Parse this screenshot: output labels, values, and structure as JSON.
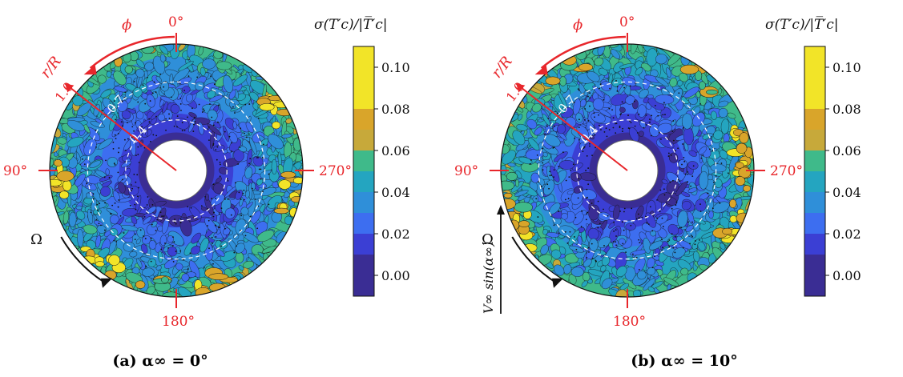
{
  "panels": [
    {
      "id": "a",
      "caption": "(a) α∞ = 0°",
      "azimuth_labels": [
        "0°",
        "90°",
        "180°",
        "270°"
      ],
      "phi_label": "ϕ",
      "radius_label": "r/R",
      "radius_tick": "1.0",
      "ring_labels": [
        "0.7",
        "0.4"
      ],
      "rotation_label": "Ω",
      "freestream_label": "",
      "hotspots": [
        {
          "angle_deg": 300,
          "level": "high"
        },
        {
          "angle_deg": 258,
          "level": "high"
        },
        {
          "angle_deg": 95,
          "level": "high"
        },
        {
          "angle_deg": 140,
          "level": "high"
        },
        {
          "angle_deg": 200,
          "level": "high"
        },
        {
          "angle_deg": 20,
          "level": "mid"
        },
        {
          "angle_deg": 170,
          "level": "mid"
        }
      ]
    },
    {
      "id": "b",
      "caption": "(b) α∞ = 10°",
      "azimuth_labels": [
        "0°",
        "90°",
        "180°",
        "270°"
      ],
      "phi_label": "ϕ",
      "radius_label": "r/R",
      "radius_tick": "1.0",
      "ring_labels": [
        "0.7",
        "0.4"
      ],
      "rotation_label": "Ω",
      "freestream_label": "V∞ sin(α∞)",
      "hotspots": [
        {
          "angle_deg": 245,
          "level": "high"
        },
        {
          "angle_deg": 265,
          "level": "high"
        },
        {
          "angle_deg": 285,
          "level": "high"
        },
        {
          "angle_deg": 120,
          "level": "high"
        },
        {
          "angle_deg": 100,
          "level": "mid"
        },
        {
          "angle_deg": 320,
          "level": "mid"
        },
        {
          "angle_deg": 30,
          "level": "mid"
        }
      ]
    }
  ],
  "colorbar": {
    "title": "σ(T′c)/|T̅′c|",
    "ticks": [
      "0.10",
      "0.08",
      "0.06",
      "0.04",
      "0.02",
      "0.00"
    ],
    "levels": [
      {
        "from": 0.1,
        "to": 0.11,
        "color": "#f2e428"
      },
      {
        "from": 0.08,
        "to": 0.1,
        "color": "#f2e428"
      },
      {
        "from": 0.07,
        "to": 0.08,
        "color": "#d9a52a"
      },
      {
        "from": 0.06,
        "to": 0.07,
        "color": "#c7a93a"
      },
      {
        "from": 0.05,
        "to": 0.06,
        "color": "#3fba8a"
      },
      {
        "from": 0.04,
        "to": 0.05,
        "color": "#24a5c0"
      },
      {
        "from": 0.03,
        "to": 0.04,
        "color": "#2f8fd9"
      },
      {
        "from": 0.02,
        "to": 0.03,
        "color": "#3d6ef0"
      },
      {
        "from": 0.01,
        "to": 0.02,
        "color": "#3b3fd4"
      },
      {
        "from": -0.01,
        "to": 0.01,
        "color": "#3a2d94"
      }
    ]
  },
  "chart_data": [
    {
      "type": "heatmap",
      "title": "(a) α∞ = 0°",
      "xlabel": "ϕ",
      "ylabel": "r/R",
      "angular_ticks": [
        "0°",
        "90°",
        "180°",
        "270°"
      ],
      "radial_ticks": [
        0.4,
        0.7,
        1.0
      ],
      "colorbar_label": "σ(T′c)/|T̅′c|",
      "colorbar_ticks": [
        0.0,
        0.02,
        0.04,
        0.06,
        0.08,
        0.1
      ],
      "value_range": [
        -0.01,
        0.11
      ],
      "radial_profile": {
        "r": [
          0.25,
          0.4,
          0.55,
          0.7,
          0.85,
          1.0
        ],
        "value": [
          0.0,
          0.01,
          0.02,
          0.03,
          0.035,
          0.05
        ]
      }
    },
    {
      "type": "heatmap",
      "title": "(b) α∞ = 10°",
      "xlabel": "ϕ",
      "ylabel": "r/R",
      "angular_ticks": [
        "0°",
        "90°",
        "180°",
        "270°"
      ],
      "radial_ticks": [
        0.4,
        0.7,
        1.0
      ],
      "colorbar_label": "σ(T′c)/|T̅′c|",
      "colorbar_ticks": [
        0.0,
        0.02,
        0.04,
        0.06,
        0.08,
        0.1
      ],
      "value_range": [
        -0.01,
        0.11
      ],
      "radial_profile": {
        "r": [
          0.25,
          0.4,
          0.55,
          0.7,
          0.85,
          1.0
        ],
        "value": [
          0.0,
          0.01,
          0.02,
          0.03,
          0.04,
          0.05
        ]
      }
    }
  ]
}
